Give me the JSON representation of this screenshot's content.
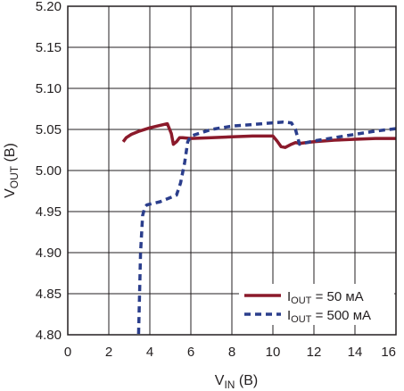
{
  "chart_data": {
    "type": "line",
    "xlabel": {
      "main": "V",
      "sub": "IN",
      "unit": " (B)"
    },
    "ylabel": {
      "main": "V",
      "sub": "OUT",
      "unit": " (B)"
    },
    "xlim": [
      0,
      16
    ],
    "ylim": [
      4.8,
      5.2
    ],
    "x_ticks": [
      0,
      2,
      4,
      6,
      8,
      10,
      12,
      14,
      16
    ],
    "y_ticks": [
      4.8,
      4.85,
      4.9,
      4.95,
      5.0,
      5.05,
      5.1,
      5.15,
      5.2
    ],
    "x_tick_labels": [
      "0",
      "2",
      "4",
      "6",
      "8",
      "10",
      "12",
      "14",
      "16"
    ],
    "y_tick_labels": [
      "4.80",
      "4.85",
      "4.90",
      "4.95",
      "5.00",
      "5.05",
      "5.10",
      "5.15",
      "5.20"
    ],
    "grid": true,
    "legend_position": "bottom-right",
    "series": [
      {
        "name": {
          "main": "I",
          "sub": "OUT",
          "rest": " = 50 мA"
        },
        "color": "#8b1a2b",
        "style": "solid",
        "x": [
          2.7,
          2.85,
          3.1,
          3.5,
          4.0,
          4.5,
          4.85,
          5.05,
          5.15,
          5.3,
          5.45,
          5.6,
          6.0,
          7.0,
          8.0,
          9.0,
          10.0,
          10.2,
          10.4,
          10.6,
          10.9,
          11.1,
          11.3,
          12.0,
          13.0,
          14.0,
          15.0,
          16.0
        ],
        "y": [
          5.035,
          5.04,
          5.044,
          5.048,
          5.052,
          5.055,
          5.057,
          5.045,
          5.032,
          5.035,
          5.04,
          5.04,
          5.039,
          5.04,
          5.041,
          5.042,
          5.042,
          5.036,
          5.029,
          5.028,
          5.032,
          5.034,
          5.033,
          5.035,
          5.037,
          5.038,
          5.039,
          5.039
        ]
      },
      {
        "name": {
          "main": "I",
          "sub": "OUT",
          "rest": " = 500 мA"
        },
        "color": "#2b3e8c",
        "style": "dashed",
        "x": [
          3.45,
          3.5,
          3.55,
          3.65,
          3.75,
          3.85,
          4.0,
          4.5,
          5.0,
          5.3,
          5.5,
          5.7,
          5.85,
          6.0,
          6.5,
          7.0,
          8.0,
          9.0,
          10.0,
          10.5,
          10.9,
          11.1,
          11.3,
          12.0,
          13.0,
          14.0,
          15.0,
          16.0
        ],
        "y": [
          4.801,
          4.85,
          4.9,
          4.945,
          4.955,
          4.958,
          4.959,
          4.962,
          4.967,
          4.97,
          4.985,
          5.01,
          5.035,
          5.042,
          5.046,
          5.05,
          5.054,
          5.056,
          5.058,
          5.059,
          5.058,
          5.05,
          5.032,
          5.036,
          5.04,
          5.044,
          5.048,
          5.051
        ]
      }
    ]
  }
}
